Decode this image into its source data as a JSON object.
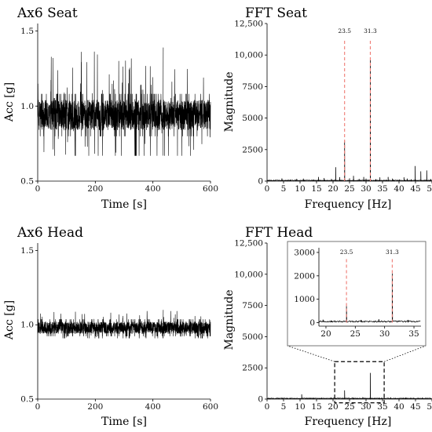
{
  "chart_data": [
    {
      "id": "seat_time",
      "type": "line",
      "title": "Ax6 Seat",
      "xlabel": "Time [s]",
      "ylabel": "Acc [g]",
      "xlim": [
        0,
        600
      ],
      "ylim": [
        0.5,
        1.55
      ],
      "xticks": [
        "0",
        "200",
        "400",
        "600"
      ],
      "yticks": [
        "0.5",
        "1.0",
        "1.5"
      ],
      "signal": {
        "t_start": 0,
        "t_end": 600,
        "mean": 0.94,
        "typical_low": 0.85,
        "typical_high": 1.05,
        "min": 0.67,
        "max": 1.39
      }
    },
    {
      "id": "seat_fft",
      "type": "line",
      "title": "FFT Seat",
      "xlabel": "Frequency [Hz]",
      "ylabel": "Magnitude",
      "xlim": [
        0,
        50
      ],
      "ylim": [
        0,
        12500
      ],
      "xticks": [
        "0",
        "5",
        "10",
        "15",
        "20",
        "25",
        "30",
        "35",
        "40",
        "45",
        "50"
      ],
      "yticks": [
        "0",
        "2500",
        "5000",
        "7500",
        "10,000",
        "12,500"
      ],
      "peaks": [
        {
          "x": 23.5,
          "y": 3200,
          "label": "23.5"
        },
        {
          "x": 31.3,
          "y": 9700,
          "label": "31.3"
        }
      ],
      "minor_peaks": [
        [
          2,
          100
        ],
        [
          4.5,
          220
        ],
        [
          7,
          120
        ],
        [
          9,
          180
        ],
        [
          11,
          200
        ],
        [
          14,
          130
        ],
        [
          15.6,
          330
        ],
        [
          17.3,
          250
        ],
        [
          19.5,
          180
        ],
        [
          20.8,
          1100
        ],
        [
          22,
          320
        ],
        [
          25,
          220
        ],
        [
          26.2,
          420
        ],
        [
          27.9,
          180
        ],
        [
          29.3,
          330
        ],
        [
          30,
          200
        ],
        [
          33,
          150
        ],
        [
          34.2,
          300
        ],
        [
          36.7,
          330
        ],
        [
          38,
          200
        ],
        [
          40.2,
          140
        ],
        [
          41.5,
          300
        ],
        [
          42.5,
          200
        ],
        [
          43.7,
          140
        ],
        [
          44.9,
          1200
        ],
        [
          46.6,
          780
        ],
        [
          48.4,
          850
        ],
        [
          49.6,
          160
        ]
      ]
    },
    {
      "id": "head_time",
      "type": "line",
      "title": "Ax6 Head",
      "xlabel": "Time [s]",
      "ylabel": "Acc [g]",
      "xlim": [
        0,
        600
      ],
      "ylim": [
        0.5,
        1.55
      ],
      "xticks": [
        "0",
        "200",
        "400",
        "600"
      ],
      "yticks": [
        "0.5",
        "1.0",
        "1.5"
      ],
      "signal": {
        "t_start": 0,
        "t_end": 600,
        "mean": 0.98,
        "typical_low": 0.95,
        "typical_high": 1.03,
        "min": 0.91,
        "max": 1.1
      }
    },
    {
      "id": "head_fft",
      "type": "line",
      "title": "FFT Head",
      "xlabel": "Frequency [Hz]",
      "ylabel": "Magnitude",
      "xlim": [
        0,
        50
      ],
      "ylim": [
        0,
        12500
      ],
      "xticks": [
        "0",
        "5",
        "10",
        "15",
        "20",
        "25",
        "30",
        "35",
        "40",
        "45",
        "50"
      ],
      "yticks": [
        "0",
        "2500",
        "5000",
        "7500",
        "10,000",
        "12,500"
      ],
      "peaks": [
        {
          "x": 23.5,
          "y": 700,
          "label": "23.5"
        },
        {
          "x": 31.3,
          "y": 2100,
          "label": "31.3"
        }
      ],
      "minor_peaks": [
        [
          2,
          80
        ],
        [
          4.5,
          110
        ],
        [
          7,
          90
        ],
        [
          10.5,
          380
        ],
        [
          14,
          110
        ],
        [
          16.5,
          120
        ],
        [
          19.5,
          130
        ],
        [
          21,
          80
        ],
        [
          26,
          120
        ],
        [
          29,
          150
        ],
        [
          34,
          120
        ],
        [
          37.5,
          140
        ],
        [
          42,
          110
        ],
        [
          47,
          110
        ],
        [
          49.5,
          90
        ]
      ],
      "zoom_box": {
        "xlim": [
          20.5,
          35.5
        ],
        "ylim": [
          -300,
          3000
        ]
      },
      "inset": {
        "xlim": [
          18.8,
          36.2
        ],
        "ylim": [
          -150,
          3200
        ],
        "xticks": [
          "20",
          "25",
          "30",
          "35"
        ],
        "yticks": [
          "0",
          "1000",
          "2000",
          "3000"
        ]
      }
    }
  ]
}
